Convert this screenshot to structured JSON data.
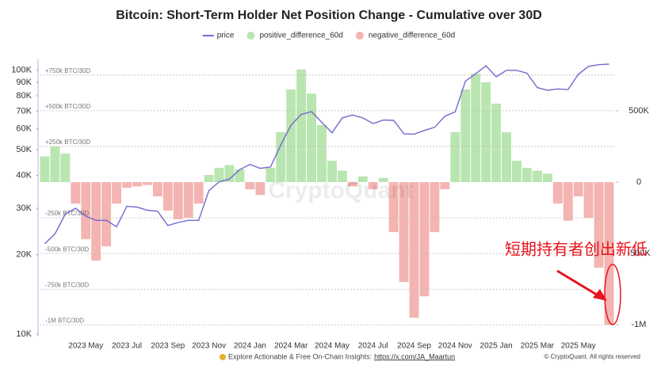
{
  "chart_data": {
    "type": "combo",
    "title": "Bitcoin: Short-Term Holder Net Position Change - Cumulative over 30D",
    "watermark": "CryptoQuant",
    "annotation": "短期持有者创出新低",
    "footer": "Explore Actionable & Free On-Chain Insights: ",
    "footer_link": "https://x.com/JA_Maartun",
    "copyright": "© CryptoQuant. All rights reserved",
    "categories": [
      null,
      null,
      null,
      null,
      "2023 May",
      null,
      null,
      null,
      "2023 Jul",
      null,
      null,
      null,
      "2023 Sep",
      null,
      null,
      null,
      "2023 Nov",
      null,
      null,
      null,
      "2024 Jan",
      null,
      null,
      null,
      "2024 Mar",
      null,
      null,
      null,
      "2024 May",
      null,
      null,
      null,
      "2024 Jul",
      null,
      null,
      null,
      "2024 Sep",
      null,
      null,
      null,
      "2024 Nov",
      null,
      null,
      null,
      "2025 Jan",
      null,
      null,
      null,
      "2025 Mar",
      null,
      null,
      null,
      "2025 May",
      null,
      null,
      null
    ],
    "series": [
      {
        "name": "price",
        "type": "line",
        "axis": "y",
        "color": "#7567cf",
        "values": [
          22000,
          24000,
          28500,
          30000,
          28000,
          27000,
          27000,
          25500,
          30500,
          30300,
          29500,
          29200,
          25800,
          26500,
          27000,
          27000,
          35000,
          37800,
          38700,
          42000,
          44000,
          42500,
          43000,
          52000,
          62000,
          68000,
          69700,
          63500,
          58000,
          66000,
          67700,
          66000,
          62800,
          64800,
          64600,
          57500,
          57300,
          59200,
          60800,
          67000,
          69500,
          91000,
          97000,
          104000,
          94500,
          100000,
          100000,
          97500,
          86000,
          84000,
          85000,
          84500,
          96500,
          103500,
          105000,
          105500
        ]
      },
      {
        "name": "positive_difference_60d",
        "type": "bar",
        "axis": "y2",
        "color": "#b9e5b1",
        "values": [
          180000,
          250000,
          200000,
          null,
          null,
          null,
          null,
          null,
          null,
          null,
          null,
          null,
          null,
          null,
          null,
          null,
          50000,
          100000,
          120000,
          90000,
          null,
          null,
          100000,
          350000,
          650000,
          790000,
          620000,
          400000,
          150000,
          80000,
          null,
          40000,
          null,
          30000,
          null,
          null,
          null,
          null,
          null,
          null,
          350000,
          650000,
          760000,
          700000,
          550000,
          350000,
          150000,
          100000,
          80000,
          60000,
          null,
          null,
          null,
          null,
          null,
          null
        ]
      },
      {
        "name": "negative_difference_60d",
        "type": "bar",
        "axis": "y2",
        "color": "#f4b4b1",
        "values": [
          null,
          null,
          null,
          -150000,
          -400000,
          -550000,
          -450000,
          -150000,
          -40000,
          -30000,
          -20000,
          -100000,
          -200000,
          -260000,
          -250000,
          -150000,
          null,
          null,
          null,
          null,
          -50000,
          -90000,
          null,
          null,
          null,
          null,
          null,
          null,
          null,
          null,
          -30000,
          null,
          -50000,
          null,
          -350000,
          -700000,
          -950000,
          -800000,
          -350000,
          -50000,
          null,
          null,
          null,
          null,
          null,
          null,
          null,
          null,
          null,
          null,
          -150000,
          -270000,
          -100000,
          -250000,
          -600000,
          -1000000
        ]
      }
    ],
    "ylog": true,
    "ylim": [
      10000,
      110000
    ],
    "yticks": [
      {
        "value": 10000,
        "label": "10K"
      },
      {
        "value": 20000,
        "label": "20K"
      },
      {
        "value": 30000,
        "label": "30K"
      },
      {
        "value": 40000,
        "label": "40K"
      },
      {
        "value": 50000,
        "label": "50K"
      },
      {
        "value": 60000,
        "label": "60K"
      },
      {
        "value": 70000,
        "label": "70K"
      },
      {
        "value": 80000,
        "label": "80K"
      },
      {
        "value": 90000,
        "label": "90K"
      },
      {
        "value": 100000,
        "label": "100K"
      }
    ],
    "y2lim": [
      -1065000,
      860000
    ],
    "y2ticks": [
      {
        "value": 500000,
        "label": "500K"
      },
      0,
      {
        "value": -500000,
        "label": "-500K"
      },
      {
        "value": -1000000,
        "label": "-1M"
      }
    ],
    "reference_lines": [
      {
        "value": 750000,
        "label": "+750k BTC/30D"
      },
      {
        "value": 500000,
        "label": "+500k BTC/30D"
      },
      {
        "value": 250000,
        "label": "+250k BTC/30D"
      },
      {
        "value": -250000,
        "label": "-250k BTC/30D"
      },
      {
        "value": -500000,
        "label": "-500k BTC/30D"
      },
      {
        "value": -750000,
        "label": "-750k BTC/30D"
      },
      {
        "value": -1000000,
        "label": "-1M BTC/30D"
      }
    ]
  }
}
